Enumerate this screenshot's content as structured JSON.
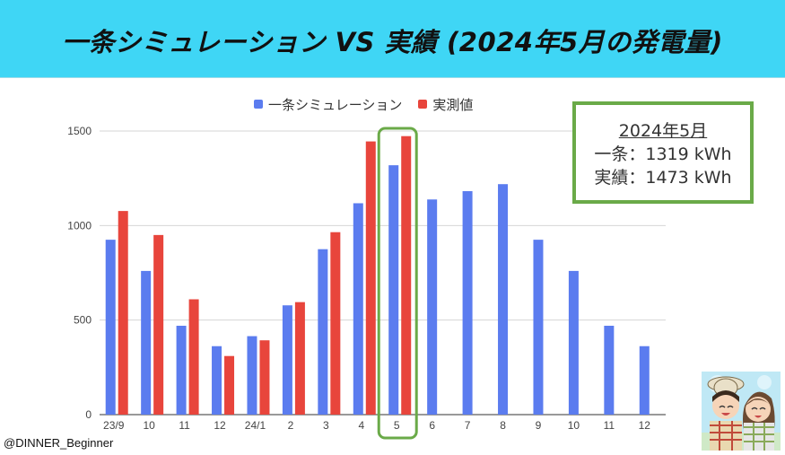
{
  "title": "一条シミュレーション VS 実績 (2024年5月の発電量)",
  "credit": "@DINNER_Beginner",
  "annotation": {
    "heading": "2024年5月",
    "line1": "一条：1319 kWh",
    "line2": "実績：1473 kWh"
  },
  "colors": {
    "sim": "#5b7cef",
    "actual": "#e8453c",
    "highlight": "#6aaa48",
    "header": "#3fd6f5"
  },
  "chart_data": {
    "type": "bar",
    "categories": [
      "23/9",
      "10",
      "11",
      "12",
      "24/1",
      "2",
      "3",
      "4",
      "5",
      "6",
      "7",
      "8",
      "9",
      "10",
      "11",
      "12"
    ],
    "series": [
      {
        "name": "一条シミュレーション",
        "values": [
          925,
          760,
          470,
          362,
          415,
          578,
          875,
          1118,
          1319,
          1138,
          1182,
          1219,
          925,
          760,
          470,
          362
        ]
      },
      {
        "name": "実測値",
        "values": [
          1077,
          950,
          610,
          310,
          393,
          595,
          965,
          1445,
          1473,
          null,
          null,
          null,
          null,
          null,
          null,
          null
        ]
      }
    ],
    "ylim": [
      0,
      1500
    ],
    "yticks": [
      0,
      500,
      1000,
      1500
    ],
    "grid": true,
    "legend": "top",
    "highlight_category": "5"
  }
}
